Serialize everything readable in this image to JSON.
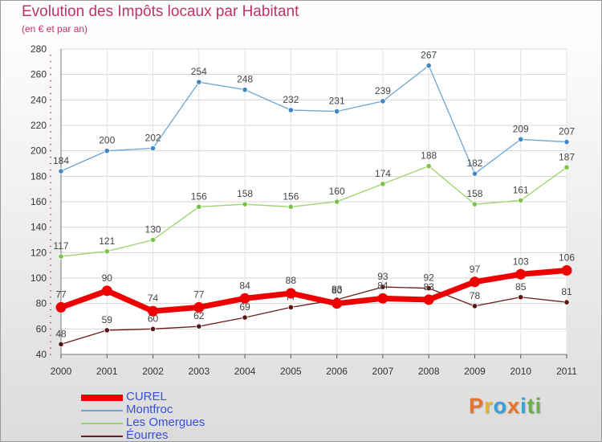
{
  "title": "Evolution des Impôts locaux par Habitant",
  "subtitle": "(en € et par an)",
  "logo": {
    "chars": [
      "P",
      "r",
      "o",
      "x",
      "i",
      "t",
      "i"
    ],
    "colors": [
      "#e8732a",
      "#e6b32a",
      "#3aa0d8",
      "#e8732a",
      "#3aa0d8",
      "#6ab04c",
      "#6ab04c"
    ]
  },
  "chart_data": {
    "type": "line",
    "title": "Evolution des Impôts locaux par Habitant",
    "subtitle": "(en € et par an)",
    "xlabel": "",
    "ylabel": "",
    "categories": [
      "2000",
      "2001",
      "2002",
      "2003",
      "2004",
      "2005",
      "2006",
      "2007",
      "2008",
      "2009",
      "2010",
      "2011"
    ],
    "ylim": [
      40,
      280
    ],
    "yticks": [
      40,
      60,
      80,
      100,
      120,
      140,
      160,
      180,
      200,
      220,
      240,
      260,
      280
    ],
    "grid": true,
    "legend_position": "bottom-left",
    "series": [
      {
        "name": "Éourres",
        "color": "#6b1d1d",
        "values": [
          48,
          59,
          60,
          62,
          69,
          77,
          83,
          93,
          92,
          78,
          85,
          81
        ]
      },
      {
        "name": "Les Omergues",
        "color": "#99d36b",
        "values": [
          117,
          121,
          130,
          156,
          158,
          156,
          160,
          174,
          188,
          158,
          161,
          187
        ]
      },
      {
        "name": "Montfroc",
        "color": "#6aa6d6",
        "values": [
          184,
          200,
          202,
          254,
          248,
          232,
          231,
          239,
          267,
          182,
          209,
          207
        ]
      },
      {
        "name": "CUREL",
        "color": "#ee0000",
        "values": [
          77,
          90,
          74,
          77,
          84,
          88,
          80,
          84,
          83,
          97,
          103,
          106
        ]
      }
    ],
    "legend_order": [
      "CUREL",
      "Montfroc",
      "Les Omergues",
      "Éourres"
    ]
  }
}
